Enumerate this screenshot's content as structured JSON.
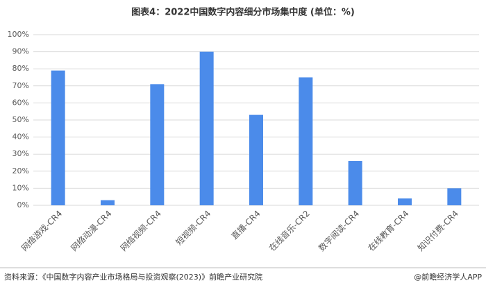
{
  "chart_data": {
    "type": "bar",
    "title": "图表4：2022中国数字内容细分市场集中度 (单位：%)",
    "categories": [
      "网络游戏-CR4",
      "网络动漫-CR4",
      "网络视频-CR4",
      "短视频-CR4",
      "直播-CR4",
      "在线音乐-CR2",
      "数字阅读-CR4",
      "在线教育-CR4",
      "知识付费-CR4"
    ],
    "values": [
      79,
      3,
      71,
      90,
      53,
      75,
      26,
      4,
      10
    ],
    "color": "#4b8bea",
    "ylim": [
      0,
      100
    ],
    "yticks": [
      {
        "value": 0,
        "label": "0%"
      },
      {
        "value": 10,
        "label": "10%"
      },
      {
        "value": 20,
        "label": "20%"
      },
      {
        "value": 30,
        "label": "30%"
      },
      {
        "value": 40,
        "label": "40%"
      },
      {
        "value": 50,
        "label": "50%"
      },
      {
        "value": 60,
        "label": "60%"
      },
      {
        "value": 70,
        "label": "70%"
      },
      {
        "value": 80,
        "label": "80%"
      },
      {
        "value": 90,
        "label": "90%"
      },
      {
        "value": 100,
        "label": "100%"
      }
    ],
    "grid": true,
    "source": "资料来源：《中国数字内容产业市场格局与投资观察(2023)》前瞻产业研究院",
    "credit": "@前瞻经济学人APP"
  }
}
